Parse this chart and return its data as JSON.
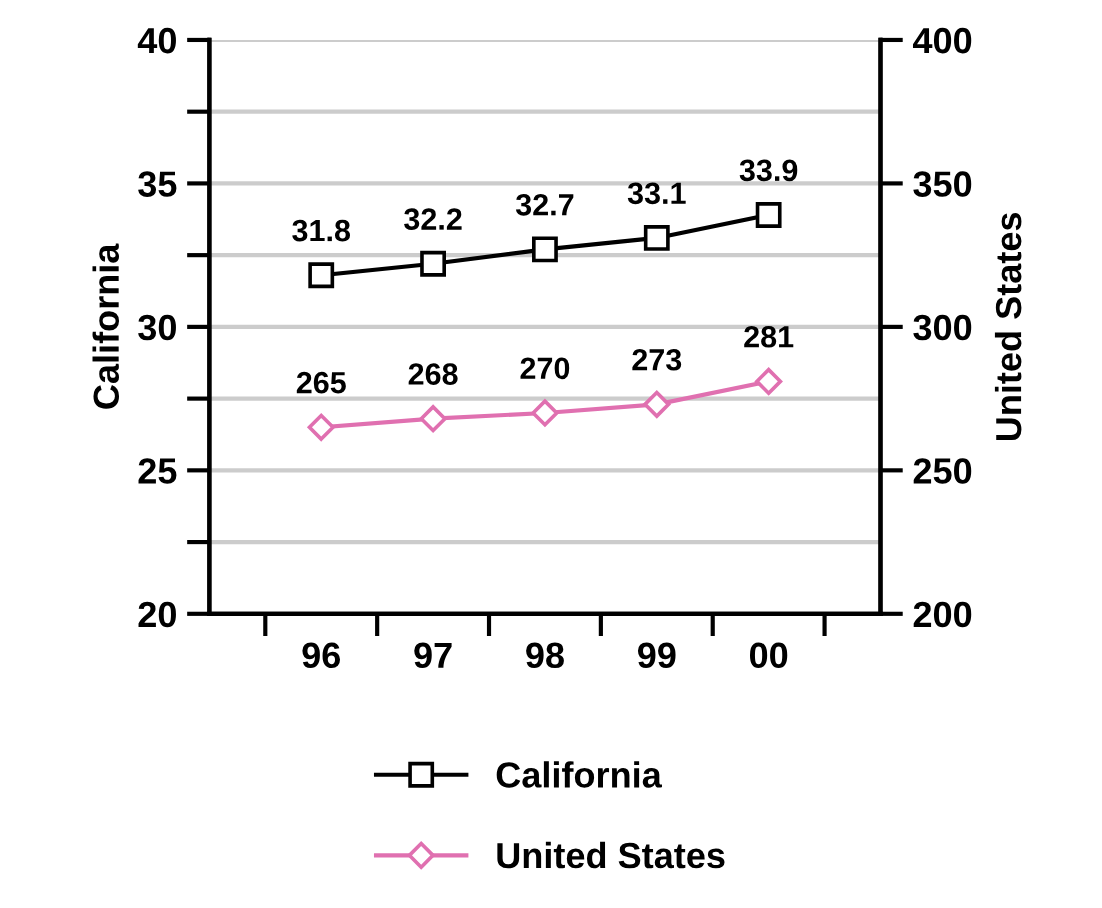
{
  "chart_data": {
    "type": "line",
    "ylabel": "California",
    "y2label": "United States",
    "categories": [
      "96",
      "97",
      "98",
      "99",
      "00"
    ],
    "series": [
      {
        "name": "California",
        "color": "#000000",
        "marker": "square",
        "values": [
          31.8,
          32.2,
          32.7,
          33.1,
          33.9
        ]
      },
      {
        "name": "United States",
        "color": "#e070b0",
        "marker": "diamond",
        "axis": "y2",
        "values": [
          265,
          268,
          270,
          273,
          281
        ]
      }
    ],
    "ylim": [
      20,
      40
    ],
    "yticks": [
      20,
      {
        "value": 22.5,
        "label": null
      },
      25,
      {
        "value": 27.5,
        "label": null
      },
      30,
      {
        "value": 32.5,
        "label": null
      },
      35,
      {
        "value": 37.5,
        "label": null
      },
      40
    ],
    "y2lim": [
      200,
      400
    ],
    "y2ticks": [
      200,
      250,
      300,
      350,
      400
    ],
    "grid": "y",
    "legend": "bottom",
    "data_labels": true,
    "line_style": "solid"
  }
}
